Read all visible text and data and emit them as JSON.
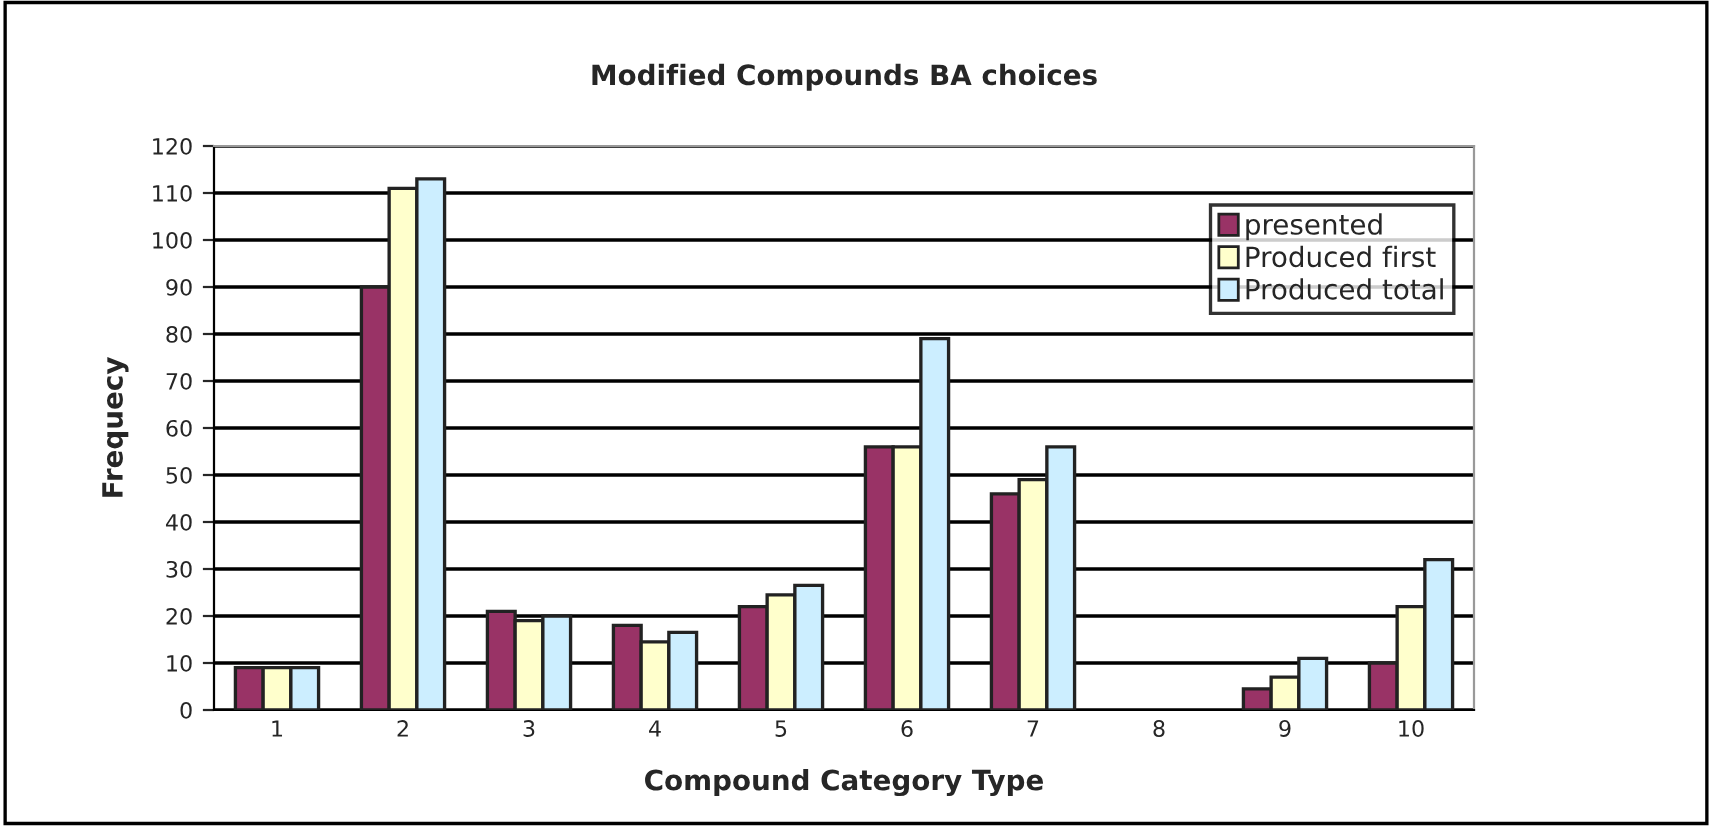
{
  "chart_data": {
    "type": "bar",
    "title": "Modified Compounds BA choices",
    "xlabel": "Compound Category Type",
    "ylabel": "Frequecy",
    "categories": [
      "1",
      "2",
      "3",
      "4",
      "5",
      "6",
      "7",
      "8",
      "9",
      "10"
    ],
    "series": [
      {
        "name": "presented",
        "color": "#993366",
        "values": [
          9,
          90,
          21,
          18,
          22,
          56,
          46,
          null,
          4.5,
          10
        ]
      },
      {
        "name": "Produced first",
        "color": "#ffffcc",
        "values": [
          9,
          111,
          19,
          14.5,
          24.5,
          56,
          49,
          null,
          7,
          22
        ]
      },
      {
        "name": "Produced total",
        "color": "#cceeff",
        "values": [
          9,
          113,
          20,
          16.5,
          26.5,
          79,
          56,
          null,
          11,
          32
        ]
      }
    ],
    "ylim": [
      0,
      120
    ],
    "yticks": [
      0,
      10,
      20,
      30,
      40,
      50,
      60,
      70,
      80,
      90,
      100,
      110,
      120
    ],
    "grid": "y",
    "legend": "top right"
  }
}
